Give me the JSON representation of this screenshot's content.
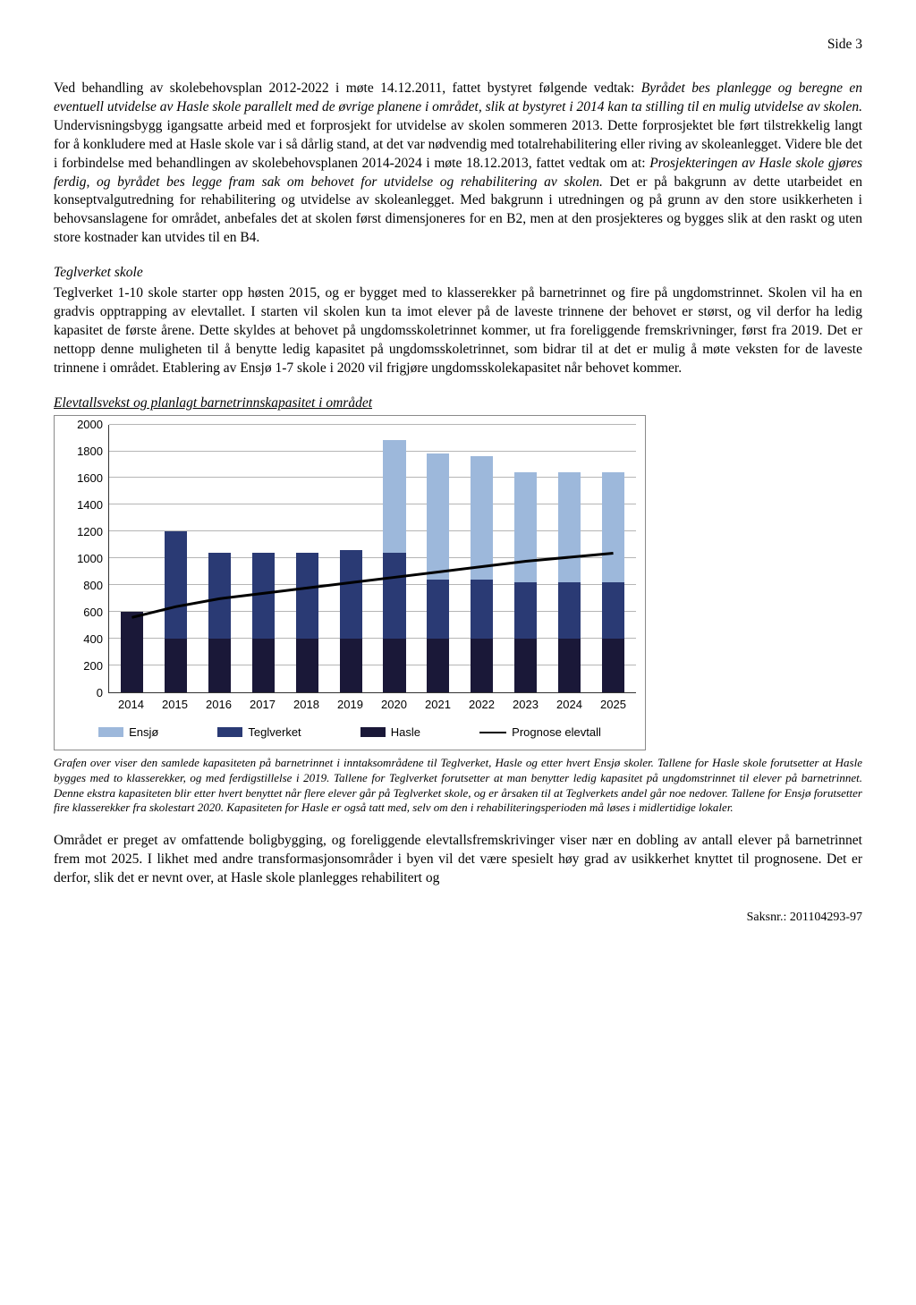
{
  "page_number": "Side 3",
  "para1_a": "Ved behandling av skolebehovsplan 2012-2022 i møte 14.12.2011, fattet bystyret følgende vedtak: ",
  "para1_b_italic": "Byrådet bes planlegge og beregne en eventuell utvidelse av Hasle skole parallelt med de øvrige planene i området, slik at bystyret i 2014 kan ta stilling til en mulig utvidelse av skolen.",
  "para1_c": " Undervisningsbygg igangsatte arbeid med et forprosjekt for utvidelse av skolen sommeren 2013. Dette forprosjektet ble ført tilstrekkelig langt for å konkludere med at Hasle skole var i så dårlig stand, at det var nødvendig med totalrehabilitering eller riving av skoleanlegget. Videre ble det i forbindelse med behandlingen av skolebehovsplanen 2014-2024 i møte 18.12.2013, fattet vedtak om at: ",
  "para1_d_italic": "Prosjekteringen av Hasle skole gjøres ferdig, og byrådet bes legge fram sak om behovet for utvidelse og rehabilitering av skolen.",
  "para1_e": " Det er på bakgrunn av dette utarbeidet en konseptvalgutredning for rehabilitering og utvidelse av skoleanlegget. Med bakgrunn i utredningen og på grunn av den store usikkerheten i behovsanslagene for området, anbefales det at skolen først dimensjoneres for en B2, men at den prosjekteres og bygges slik at den raskt og uten store kostnader kan utvides til en B4.",
  "heading2": "Teglverket skole",
  "para2": "Teglverket 1-10 skole starter opp høsten 2015, og er bygget med to klasserekker på barnetrinnet og fire på ungdomstrinnet. Skolen vil ha en gradvis opptrapping av elevtallet. I starten vil skolen kun ta imot elever på de laveste trinnene der behovet er størst, og vil derfor ha ledig kapasitet de første årene. Dette skyldes at behovet på ungdomsskoletrinnet kommer, ut fra foreliggende fremskrivninger, først fra 2019.  Det er nettopp denne muligheten til å benytte ledig kapasitet på ungdomsskoletrinnet, som bidrar til at det er mulig å møte veksten for de laveste trinnene i området. Etablering av Ensjø 1-7 skole i 2020 vil frigjøre ungdomsskolekapasitet når behovet kommer.",
  "chart_title": "Elevtallsvekst og planlagt barnetrinnskapasitet i området",
  "chart": {
    "ymax": 2000,
    "ytick_step": 200,
    "colors": {
      "ensjo": "#9db8db",
      "teglverket": "#2a3a74",
      "hasle": "#1a1838",
      "grid": "#b5b5b5",
      "line": "#000000"
    },
    "categories": [
      "2014",
      "2015",
      "2016",
      "2017",
      "2018",
      "2019",
      "2020",
      "2021",
      "2022",
      "2023",
      "2024",
      "2025"
    ],
    "series": {
      "hasle": [
        600,
        400,
        400,
        400,
        400,
        400,
        400,
        400,
        400,
        400,
        400,
        400
      ],
      "teglverket": [
        0,
        800,
        640,
        640,
        640,
        660,
        640,
        440,
        440,
        420,
        420,
        420
      ],
      "ensjo": [
        0,
        0,
        0,
        0,
        0,
        0,
        840,
        940,
        920,
        820,
        820,
        820
      ]
    },
    "prognose": [
      560,
      640,
      700,
      740,
      780,
      820,
      860,
      900,
      940,
      980,
      1010,
      1040
    ]
  },
  "legend": {
    "ensjo": "Ensjø",
    "teglverket": "Teglverket",
    "hasle": "Hasle",
    "prognose": "Prognose elevtall"
  },
  "caption": "Grafen over viser den samlede kapasiteten på barnetrinnet i inntaksområdene til Teglverket, Hasle og etter hvert Ensjø skoler. Tallene for Hasle skole forutsetter at Hasle bygges med to klasserekker, og med ferdigstillelse i 2019. Tallene for Teglverket forutsetter at man benytter ledig kapasitet på ungdomstrinnet til elever på barnetrinnet. Denne ekstra kapasiteten blir etter hvert benyttet når flere elever går på Teglverket skole, og er årsaken til at Teglverkets andel går noe nedover. Tallene for Ensjø forutsetter fire klasserekker fra skolestart 2020. Kapasiteten for Hasle er også tatt med, selv om den i rehabiliteringsperioden må løses i midlertidige lokaler.",
  "para3": "Området er preget av omfattende boligbygging, og foreliggende elevtallsfremskrivinger viser nær en dobling av antall elever på barnetrinnet frem mot 2025.  I likhet med andre transformasjonsområder i byen vil det være spesielt høy grad av usikkerhet knyttet til prognosene. Det er derfor, slik det er nevnt over, at Hasle skole planlegges rehabilitert og",
  "saksnr": "Saksnr.: 201104293-97"
}
